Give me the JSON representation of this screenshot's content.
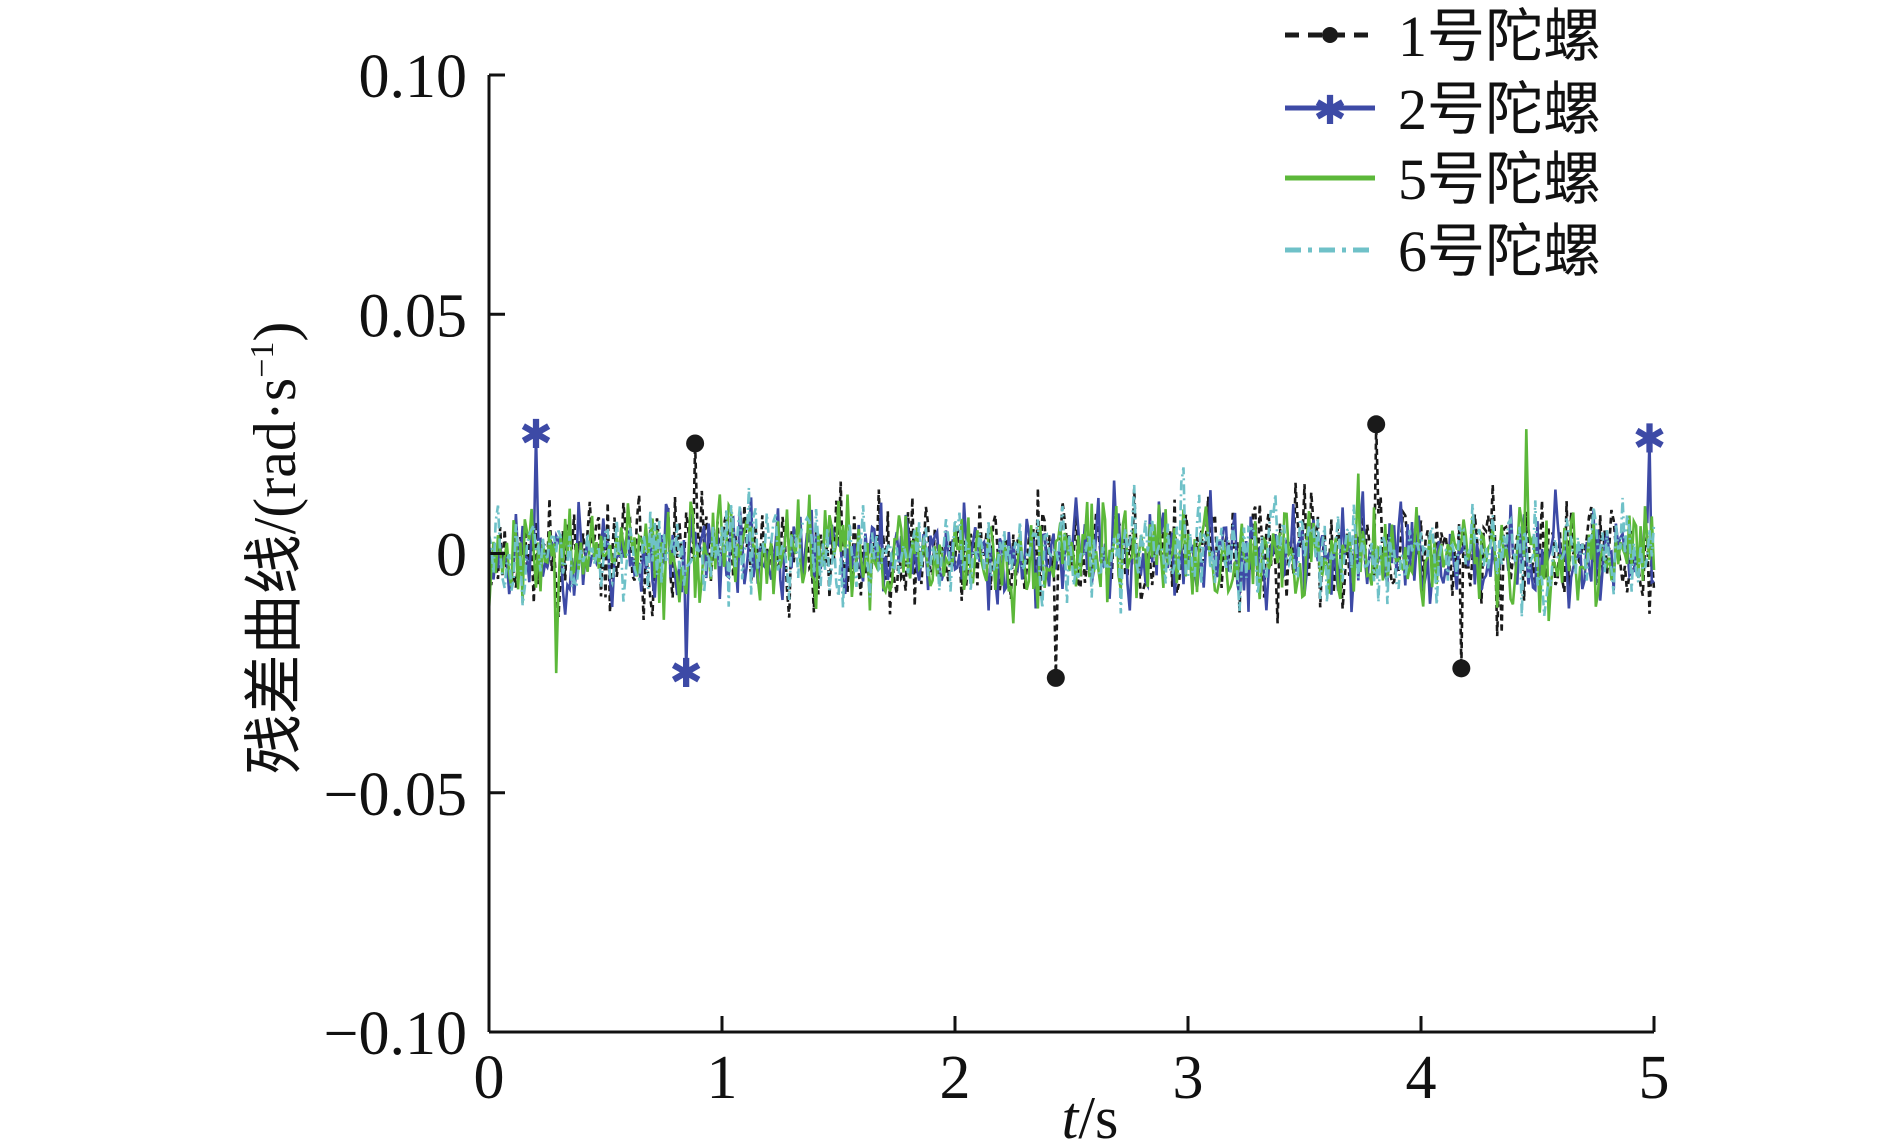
{
  "chart_data": {
    "type": "line",
    "xlabel_italic": "t",
    "xlabel_rest": "/s",
    "ylabel_main": "残差曲线/(rad·s",
    "ylabel_sup": "−1",
    "ylabel_close": ")",
    "xlim": [
      0,
      5
    ],
    "ylim": [
      -0.1,
      0.1
    ],
    "x_ticks": [
      0,
      1,
      2,
      3,
      4,
      5
    ],
    "x_tick_labels": [
      "0",
      "1",
      "2",
      "3",
      "4",
      "5"
    ],
    "y_ticks": [
      0.1,
      0.05,
      0,
      -0.05,
      -0.1
    ],
    "y_tick_labels": [
      "0.10",
      "0.05",
      "0",
      "−0.05",
      "−0.10"
    ],
    "grid": false,
    "legend_position": "top-right",
    "noise_description_x_range": [
      0,
      5
    ],
    "series": [
      {
        "name": "1号陀螺",
        "color": "#1a1a1a",
        "line_style": "dashed",
        "marker": "dot",
        "amplitude_range": [
          -0.027,
          0.028
        ],
        "peaks": [
          {
            "x": 2.43,
            "y": -0.026
          },
          {
            "x": 3.81,
            "y": 0.027
          },
          {
            "x": 0.88,
            "y": 0.023
          },
          {
            "x": 4.17,
            "y": -0.024
          }
        ]
      },
      {
        "name": "2号陀螺",
        "color": "#3d4aa6",
        "line_style": "solid",
        "marker": "star",
        "amplitude_range": [
          -0.025,
          0.025
        ],
        "peaks": [
          {
            "x": 0.2,
            "y": 0.025
          },
          {
            "x": 4.98,
            "y": 0.024
          },
          {
            "x": 0.85,
            "y": -0.025
          }
        ]
      },
      {
        "name": "5号陀螺",
        "color": "#5cb83a",
        "line_style": "solid",
        "marker": "none",
        "amplitude_range": [
          -0.025,
          0.026
        ],
        "peaks": [
          {
            "x": 4.45,
            "y": 0.026
          },
          {
            "x": 0.29,
            "y": -0.025
          }
        ]
      },
      {
        "name": "6号陀螺",
        "color": "#6fc1c8",
        "line_style": "dashdot",
        "marker": "none",
        "amplitude_range": [
          -0.024,
          0.024
        ],
        "peaks": [
          {
            "x": 2.98,
            "y": -0.024
          },
          {
            "x": 2.98,
            "y": 0.018
          }
        ]
      }
    ]
  }
}
